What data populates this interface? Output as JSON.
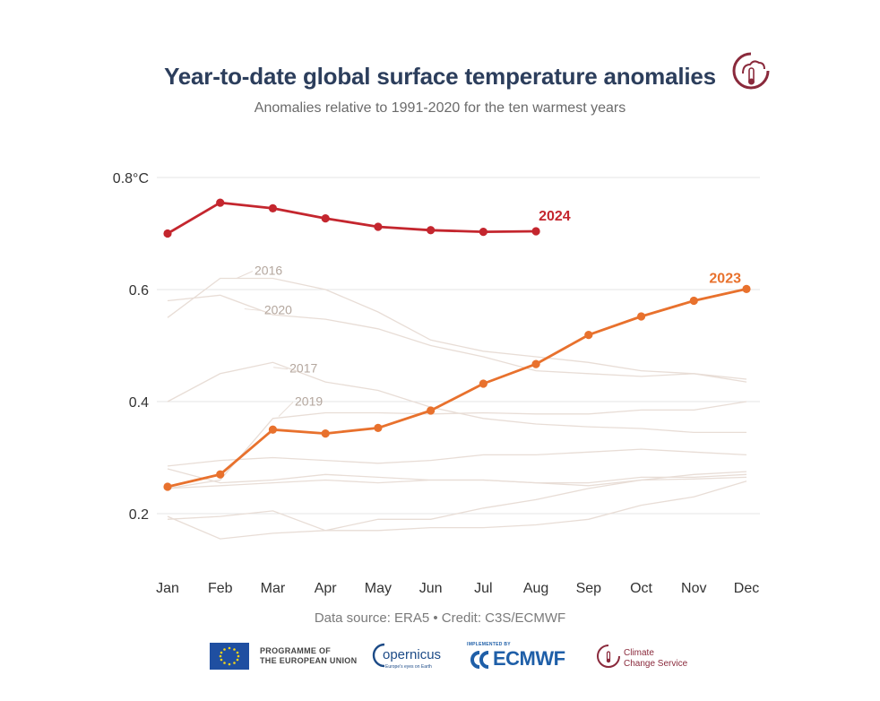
{
  "header": {
    "title": "Year-to-date global surface temperature anomalies",
    "subtitle": "Anomalies relative to 1991-2020 for the ten warmest years"
  },
  "footer": {
    "source": "Data source: ERA5 • Credit: C3S/ECMWF",
    "eu_line1": "PROGRAMME OF",
    "eu_line2": "THE EUROPEAN UNION",
    "copernicus": "opernicus",
    "copernicus_tag": "Europe's eyes on Earth",
    "ecmwf_pre": "IMPLEMENTED BY",
    "ecmwf": "ECMWF",
    "ccs_line1": "Climate",
    "ccs_line2": "Change Service"
  },
  "colors": {
    "y2024": "#c4262e",
    "y2023": "#e8712d",
    "background_years": "#e8ddd6",
    "grid": "#e6e6e6",
    "title": "#2c3e5c"
  },
  "chart_data": {
    "type": "line",
    "title": "Year-to-date global surface temperature anomalies",
    "subtitle": "Anomalies relative to 1991-2020 for the ten warmest years",
    "xlabel": "",
    "ylabel": "",
    "unit": "°C",
    "ylim": [
      0.12,
      0.8
    ],
    "yticks": [
      0.2,
      0.4,
      0.6,
      0.8
    ],
    "ytick_labels": [
      "0.2",
      "0.4",
      "0.6",
      "0.8°C"
    ],
    "categories": [
      "Jan",
      "Feb",
      "Mar",
      "Apr",
      "May",
      "Jun",
      "Jul",
      "Aug",
      "Sep",
      "Oct",
      "Nov",
      "Dec"
    ],
    "highlight_series": [
      {
        "name": "2024",
        "values": [
          0.7,
          0.755,
          0.745,
          0.727,
          0.712,
          0.706,
          0.703,
          0.704,
          null,
          null,
          null,
          null
        ]
      },
      {
        "name": "2023",
        "values": [
          0.248,
          0.27,
          0.35,
          0.343,
          0.353,
          0.384,
          0.432,
          0.467,
          0.519,
          0.552,
          0.58,
          0.601
        ]
      }
    ],
    "background_series": [
      {
        "name": "2016",
        "labeled": true,
        "values": [
          0.55,
          0.62,
          0.62,
          0.6,
          0.56,
          0.51,
          0.49,
          0.48,
          0.47,
          0.455,
          0.45,
          0.44
        ]
      },
      {
        "name": "2020",
        "labeled": true,
        "values": [
          0.58,
          0.59,
          0.555,
          0.547,
          0.53,
          0.5,
          0.48,
          0.455,
          0.45,
          0.445,
          0.45,
          0.435
        ]
      },
      {
        "name": "2017",
        "labeled": true,
        "values": [
          0.4,
          0.45,
          0.47,
          0.435,
          0.42,
          0.39,
          0.37,
          0.36,
          0.355,
          0.352,
          0.345,
          0.345
        ]
      },
      {
        "name": "2019",
        "labeled": true,
        "values": [
          0.245,
          0.26,
          0.37,
          0.38,
          0.38,
          0.378,
          0.38,
          0.378,
          0.378,
          0.385,
          0.385,
          0.4
        ]
      },
      {
        "name": "",
        "labeled": false,
        "values": [
          0.285,
          0.295,
          0.3,
          0.295,
          0.29,
          0.295,
          0.305,
          0.305,
          0.31,
          0.315,
          0.31,
          0.305
        ]
      },
      {
        "name": "",
        "labeled": false,
        "values": [
          0.28,
          0.255,
          0.26,
          0.27,
          0.265,
          0.26,
          0.26,
          0.255,
          0.25,
          0.26,
          0.262,
          0.265
        ]
      },
      {
        "name": "",
        "labeled": false,
        "values": [
          0.245,
          0.25,
          0.255,
          0.26,
          0.255,
          0.26,
          0.26,
          0.255,
          0.255,
          0.265,
          0.265,
          0.27
        ]
      },
      {
        "name": "",
        "labeled": false,
        "values": [
          0.19,
          0.195,
          0.205,
          0.17,
          0.19,
          0.19,
          0.21,
          0.225,
          0.245,
          0.26,
          0.27,
          0.275
        ]
      },
      {
        "name": "",
        "labeled": false,
        "values": [
          0.195,
          0.155,
          0.165,
          0.17,
          0.17,
          0.175,
          0.175,
          0.18,
          0.19,
          0.215,
          0.23,
          0.258
        ]
      }
    ],
    "legend": "direct labels"
  }
}
